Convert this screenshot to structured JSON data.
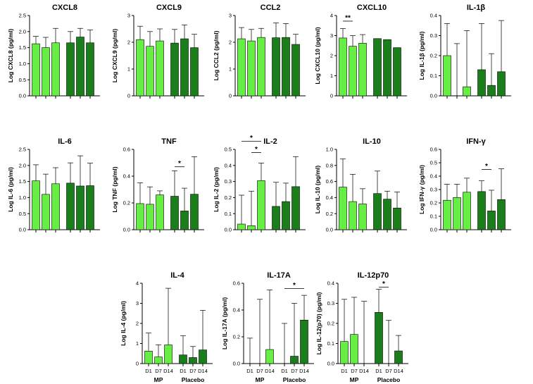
{
  "colors": {
    "MP": "#66ee44",
    "Placebo": "#1a7f1a"
  },
  "groups": [
    "MP",
    "Placebo"
  ],
  "days": [
    "D1",
    "D7",
    "D14"
  ],
  "chart_data": [
    {
      "type": "bar",
      "title": "CXCL8",
      "ylabel": "Log CXCL8 (pg/ml)",
      "ylim": [
        0,
        2.5
      ],
      "yticks": [
        "0.0",
        "0.5",
        "1.0",
        "1.5",
        "2.0",
        "2.5"
      ],
      "tickvals": [
        0,
        0.5,
        1,
        1.5,
        2,
        2.5
      ],
      "series": [
        {
          "name": "MP",
          "values": [
            1.62,
            1.5,
            1.65
          ],
          "errors": [
            1.85,
            1.82,
            2.1
          ]
        },
        {
          "name": "Placebo",
          "values": [
            1.65,
            1.83,
            1.65
          ],
          "errors": [
            2.0,
            2.1,
            2.05
          ]
        }
      ],
      "annotations": []
    },
    {
      "type": "bar",
      "title": "CXCL9",
      "ylabel": "Log CXCL9 (pg/ml)",
      "ylim": [
        0,
        3
      ],
      "yticks": [
        "0",
        "1",
        "2",
        "3"
      ],
      "tickvals": [
        0,
        1,
        2,
        3
      ],
      "series": [
        {
          "name": "MP",
          "values": [
            2.1,
            1.85,
            2.05
          ],
          "errors": [
            2.6,
            2.4,
            2.5
          ]
        },
        {
          "name": "Placebo",
          "values": [
            1.97,
            2.13,
            1.8
          ],
          "errors": [
            2.48,
            2.65,
            2.3
          ]
        }
      ],
      "annotations": []
    },
    {
      "type": "bar",
      "title": "CCL2",
      "ylabel": "Log CCL2 (pg/ml)",
      "ylim": [
        0,
        3
      ],
      "yticks": [
        "0",
        "1",
        "2",
        "3"
      ],
      "tickvals": [
        0,
        1,
        2,
        3
      ],
      "series": [
        {
          "name": "MP",
          "values": [
            2.13,
            2.05,
            2.18
          ],
          "errors": [
            2.55,
            2.48,
            2.52
          ]
        },
        {
          "name": "Placebo",
          "values": [
            2.17,
            2.18,
            1.92
          ],
          "errors": [
            2.72,
            2.7,
            2.3
          ]
        }
      ],
      "annotations": []
    },
    {
      "type": "bar",
      "title": "CXCL10",
      "ylabel": "Log CXCL10 (pg/ml)",
      "ylim": [
        0,
        4
      ],
      "yticks": [
        "0",
        "1",
        "2",
        "3",
        "4"
      ],
      "tickvals": [
        0,
        1,
        2,
        3,
        4
      ],
      "series": [
        {
          "name": "MP",
          "values": [
            2.88,
            2.47,
            2.62
          ],
          "errors": [
            3.35,
            3.0,
            3.05
          ]
        },
        {
          "name": "Placebo",
          "values": [
            2.85,
            2.8,
            2.4
          ]
        }
      ],
      "annotations": [
        {
          "label": "**",
          "from": 0,
          "to": 1,
          "y": 3.72
        }
      ]
    },
    {
      "type": "bar",
      "title": "IL-1β",
      "ylabel": "Log IL-1β (pg/ml)",
      "ylim": [
        0,
        0.4
      ],
      "yticks": [
        "0.0",
        "0.1",
        "0.2",
        "0.3",
        "0.4"
      ],
      "tickvals": [
        0,
        0.1,
        0.2,
        0.3,
        0.4
      ],
      "series": [
        {
          "name": "MP",
          "values": [
            0.2,
            0.0,
            0.045
          ],
          "errors": [
            0.36,
            0.26,
            0.325
          ]
        },
        {
          "name": "Placebo",
          "values": [
            0.13,
            0.052,
            0.12
          ],
          "errors": [
            0.36,
            0.21,
            0.375
          ]
        }
      ],
      "annotations": []
    },
    {
      "type": "bar",
      "title": "IL-6",
      "ylabel": "Log IL-6 (pg/ml)",
      "ylim": [
        0,
        2.5
      ],
      "yticks": [
        "0.0",
        "0.5",
        "1.0",
        "1.5",
        "2.0",
        "2.5"
      ],
      "tickvals": [
        0,
        0.5,
        1,
        1.5,
        2,
        2.5
      ],
      "series": [
        {
          "name": "MP",
          "values": [
            1.52,
            1.1,
            1.43
          ],
          "errors": [
            2.02,
            1.73,
            1.93
          ]
        },
        {
          "name": "Placebo",
          "values": [
            1.45,
            1.36,
            1.37
          ],
          "errors": [
            2.08,
            2.3,
            2.07
          ]
        }
      ],
      "annotations": []
    },
    {
      "type": "bar",
      "title": "TNF",
      "ylabel": "Log TNF (pg/ml)",
      "ylim": [
        0,
        0.6
      ],
      "yticks": [
        "0.0",
        "0.2",
        "0.4",
        "0.6"
      ],
      "tickvals": [
        0,
        0.2,
        0.4,
        0.6
      ],
      "series": [
        {
          "name": "MP",
          "values": [
            0.195,
            0.19,
            0.26
          ],
          "errors": [
            0.35,
            0.32,
            0.29
          ]
        },
        {
          "name": "Placebo",
          "values": [
            0.25,
            0.14,
            0.265
          ],
          "errors": [
            0.44,
            0.31,
            0.545
          ]
        }
      ],
      "annotations": [
        {
          "label": "*",
          "from": 3,
          "to": 4,
          "y": 0.47
        }
      ]
    },
    {
      "type": "bar",
      "title": "IL-2",
      "ylabel": "Log IL-2 (pg/ml)",
      "ylim": [
        0,
        0.5
      ],
      "yticks": [
        "0.0",
        "0.1",
        "0.2",
        "0.3",
        "0.4",
        "0.5"
      ],
      "tickvals": [
        0,
        0.1,
        0.2,
        0.3,
        0.4,
        0.5
      ],
      "series": [
        {
          "name": "MP",
          "values": [
            0.035,
            0.025,
            0.305
          ],
          "errors": [
            0.215,
            0.24,
            0.415
          ]
        },
        {
          "name": "Placebo",
          "values": [
            0.145,
            0.175,
            0.268
          ],
          "errors": [
            0.295,
            0.29,
            0.455
          ]
        }
      ],
      "annotations": [
        {
          "label": "*",
          "from": 0,
          "to": 2,
          "y": 0.55
        },
        {
          "label": "*",
          "from": 1,
          "to": 2,
          "y": 0.48
        }
      ]
    },
    {
      "type": "bar",
      "title": "IL-10",
      "ylabel": "Log IL-10 (pg/ml)",
      "ylim": [
        0,
        1
      ],
      "yticks": [
        "0.0",
        "0.2",
        "0.4",
        "0.6",
        "0.8",
        "1.0"
      ],
      "tickvals": [
        0,
        0.2,
        0.4,
        0.6,
        0.8,
        1
      ],
      "series": [
        {
          "name": "MP",
          "values": [
            0.53,
            0.35,
            0.32
          ],
          "errors": [
            0.88,
            0.69,
            0.51
          ]
        },
        {
          "name": "Placebo",
          "values": [
            0.45,
            0.38,
            0.27
          ],
          "errors": [
            0.73,
            0.48,
            0.47
          ]
        }
      ],
      "annotations": []
    },
    {
      "type": "bar",
      "title": "IFN-γ",
      "ylabel": "Log IFN-γ (pg/ml)",
      "ylim": [
        0,
        0.6
      ],
      "yticks": [
        "0.0",
        "0.1",
        "0.2",
        "0.3",
        "0.4",
        "0.5",
        "0.6"
      ],
      "tickvals": [
        0,
        0.1,
        0.2,
        0.3,
        0.4,
        0.5,
        0.6
      ],
      "series": [
        {
          "name": "MP",
          "values": [
            0.22,
            0.24,
            0.28
          ],
          "errors": [
            0.34,
            0.34,
            0.385
          ]
        },
        {
          "name": "Placebo",
          "values": [
            0.285,
            0.14,
            0.225
          ],
          "errors": [
            0.365,
            0.295,
            0.455
          ]
        }
      ],
      "annotations": [
        {
          "label": "*",
          "from": 3,
          "to": 4,
          "y": 0.45
        }
      ]
    },
    {
      "type": "bar",
      "title": "IL-4",
      "ylabel": "Log IL-4 (pg/ml)",
      "ylim": [
        0,
        4
      ],
      "yticks": [
        "0",
        "1",
        "2",
        "3",
        "4"
      ],
      "tickvals": [
        0,
        1,
        2,
        3,
        4
      ],
      "series": [
        {
          "name": "MP",
          "values": [
            0.62,
            0.33,
            0.93
          ],
          "errors": [
            1.52,
            0.93,
            3.75
          ]
        },
        {
          "name": "Placebo",
          "values": [
            0.43,
            0.3,
            0.68
          ],
          "errors": [
            1.38,
            0.85,
            2.65
          ]
        }
      ],
      "annotations": []
    },
    {
      "type": "bar",
      "title": "IL-17A",
      "ylabel": "Log IL-17A (pg/ml)",
      "ylim": [
        0,
        0.6
      ],
      "yticks": [
        "0.0",
        "0.2",
        "0.4",
        "0.6"
      ],
      "tickvals": [
        0,
        0.2,
        0.4,
        0.6
      ],
      "series": [
        {
          "name": "MP",
          "values": [
            0.0,
            0.0,
            0.105
          ],
          "errors": [
            0.19,
            0.48,
            0.55
          ]
        },
        {
          "name": "Placebo",
          "values": [
            0.0,
            0.055,
            0.325
          ],
          "errors": [
            0.3,
            0.45,
            0.51
          ]
        }
      ],
      "annotations": [
        {
          "label": "*",
          "from": 3,
          "to": 5,
          "y": 0.56
        }
      ]
    },
    {
      "type": "bar",
      "title": "IL-12p70",
      "ylabel": "Log IL-12(p70) (pg/ml)",
      "ylim": [
        0,
        0.4
      ],
      "yticks": [
        "0.0",
        "0.1",
        "0.2",
        "0.3",
        "0.4"
      ],
      "tickvals": [
        0,
        0.1,
        0.2,
        0.3,
        0.4
      ],
      "series": [
        {
          "name": "MP",
          "values": [
            0.11,
            0.145,
            0.0
          ],
          "errors": [
            0.32,
            0.33,
            0.31
          ]
        },
        {
          "name": "Placebo",
          "values": [
            0.255,
            0.0,
            0.063
          ],
          "errors": [
            0.37,
            0.215,
            0.14
          ]
        }
      ],
      "annotations": [
        {
          "label": "*",
          "from": 3,
          "to": 4,
          "y": 0.38
        }
      ]
    }
  ]
}
